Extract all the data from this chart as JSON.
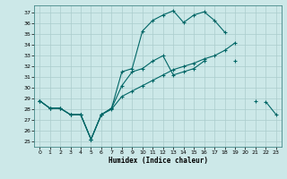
{
  "xlabel": "Humidex (Indice chaleur)",
  "background_color": "#cce8e8",
  "grid_color": "#aacccc",
  "line_color": "#006666",
  "xlim": [
    -0.5,
    23.5
  ],
  "ylim": [
    24.5,
    37.7
  ],
  "yticks": [
    25,
    26,
    27,
    28,
    29,
    30,
    31,
    32,
    33,
    34,
    35,
    36,
    37
  ],
  "xticks": [
    0,
    1,
    2,
    3,
    4,
    5,
    6,
    7,
    8,
    9,
    10,
    11,
    12,
    13,
    14,
    15,
    16,
    17,
    18,
    19,
    20,
    21,
    22,
    23
  ],
  "line1_y": [
    28.8,
    28.1,
    28.1,
    27.5,
    27.5,
    25.2,
    27.5,
    28.1,
    31.5,
    31.8,
    35.3,
    36.3,
    36.8,
    37.2,
    36.1,
    36.8,
    37.1,
    36.3,
    35.2,
    null,
    null,
    null,
    28.7,
    27.5
  ],
  "line2_y": [
    28.8,
    28.1,
    28.1,
    27.5,
    27.5,
    25.2,
    27.5,
    28.1,
    30.2,
    31.5,
    31.8,
    32.5,
    33.0,
    31.2,
    31.5,
    31.8,
    32.5,
    null,
    null,
    32.5,
    null,
    28.8,
    null,
    null
  ],
  "line3_y": [
    28.8,
    28.1,
    28.1,
    27.5,
    27.5,
    25.2,
    27.5,
    28.0,
    29.2,
    29.7,
    30.2,
    30.7,
    31.2,
    31.7,
    32.0,
    32.3,
    32.7,
    33.0,
    33.5,
    34.2,
    null,
    null,
    null,
    null
  ]
}
